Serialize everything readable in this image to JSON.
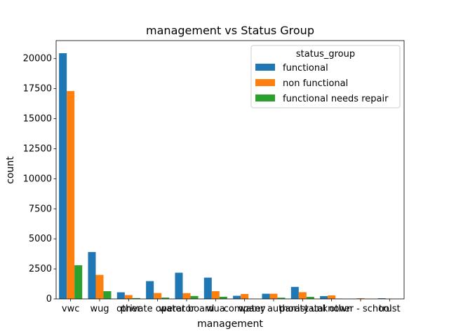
{
  "chart_data": {
    "type": "bar",
    "title": "management vs Status Group",
    "xlabel": "management",
    "ylabel": "count",
    "categories": [
      "vwc",
      "wug",
      "other",
      "private operator",
      "water board",
      "wua",
      "company",
      "water authority",
      "parastatal",
      "unknown",
      "other - school",
      "trust"
    ],
    "ylim": [
      0,
      21500
    ],
    "yticks": [
      0,
      2500,
      5000,
      7500,
      10000,
      12500,
      15000,
      17500,
      20000
    ],
    "ytick_labels": [
      "0",
      "2500",
      "5000",
      "7500",
      "10000",
      "12500",
      "15000",
      "17500",
      "20000"
    ],
    "grid": false,
    "legend": {
      "title": "status_group",
      "placement": "top-right"
    },
    "series": [
      {
        "name": "functional",
        "color": "#1f77b4",
        "values": [
          20450,
          3900,
          550,
          1480,
          2180,
          1770,
          260,
          430,
          1000,
          230,
          10,
          55
        ]
      },
      {
        "name": "non functional",
        "color": "#ff7f0e",
        "values": [
          17300,
          2000,
          320,
          490,
          480,
          640,
          410,
          430,
          560,
          290,
          55,
          10
        ]
      },
      {
        "name": "functional needs repair",
        "color": "#2ca02c",
        "values": [
          2800,
          640,
          70,
          110,
          240,
          180,
          10,
          100,
          170,
          25,
          0,
          5
        ]
      }
    ]
  }
}
